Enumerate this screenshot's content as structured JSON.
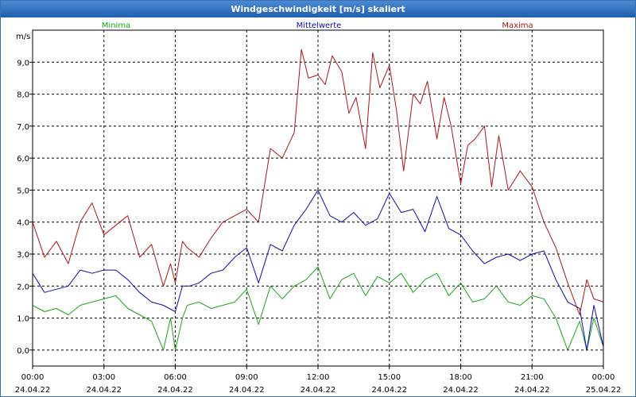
{
  "window": {
    "title": "Windgeschwindigkeit [m/s] skaliert"
  },
  "colors": {
    "title_bar": "#2f6cbf",
    "minima": "#18a818",
    "mean": "#0c0cb4",
    "maxima": "#b01414",
    "grid": "#000000"
  },
  "chart_data": {
    "type": "line",
    "title": "Windgeschwindigkeit [m/s] skaliert",
    "ylabel": "m/s",
    "xlabel": "",
    "ylim": [
      -0.5,
      10.0
    ],
    "y_ticks": [
      "0,0",
      "1,0",
      "2,0",
      "3,0",
      "4,0",
      "5,0",
      "6,0",
      "7,0",
      "8,0",
      "9,0"
    ],
    "y_tick_values": [
      0,
      1,
      2,
      3,
      4,
      5,
      6,
      7,
      8,
      9
    ],
    "x_ticks": [
      {
        "time": "00:00",
        "date": "24.04.22"
      },
      {
        "time": "03:00",
        "date": "24.04.22"
      },
      {
        "time": "06:00",
        "date": "24.04.22"
      },
      {
        "time": "09:00",
        "date": "24.04.22"
      },
      {
        "time": "12:00",
        "date": "24.04.22"
      },
      {
        "time": "15:00",
        "date": "24.04.22"
      },
      {
        "time": "18:00",
        "date": "24.04.22"
      },
      {
        "time": "21:00",
        "date": "24.04.22"
      },
      {
        "time": "00:00",
        "date": "25.04.22"
      }
    ],
    "grid": true,
    "x_unit": "hours since 24.04.22 00:00",
    "series": [
      {
        "name": "Minima",
        "color": "#18a818",
        "x": [
          0,
          0.5,
          1,
          1.5,
          2,
          2.5,
          3,
          3.5,
          4,
          4.5,
          5,
          5.5,
          5.8,
          6,
          6.3,
          6.5,
          7,
          7.5,
          8,
          8.5,
          9,
          9.5,
          10,
          10.5,
          11,
          11.5,
          12,
          12.5,
          13,
          13.5,
          14,
          14.5,
          15,
          15.5,
          16,
          16.5,
          17,
          17.5,
          18,
          18.5,
          19,
          19.5,
          20,
          20.5,
          21,
          21.5,
          22,
          22.5,
          23,
          23.3,
          23.6,
          24
        ],
        "values": [
          1.4,
          1.2,
          1.3,
          1.1,
          1.4,
          1.5,
          1.6,
          1.7,
          1.3,
          1.1,
          0.9,
          0.0,
          1.0,
          0.0,
          1.0,
          1.4,
          1.5,
          1.3,
          1.4,
          1.5,
          1.9,
          0.8,
          2.0,
          1.6,
          2.0,
          2.2,
          2.6,
          1.6,
          2.2,
          2.4,
          1.7,
          2.3,
          2.1,
          2.4,
          1.8,
          2.2,
          2.4,
          1.7,
          2.1,
          1.5,
          1.6,
          2.0,
          1.5,
          1.4,
          1.7,
          1.6,
          1.0,
          0.0,
          0.9,
          0.0,
          1.0,
          0.1
        ]
      },
      {
        "name": "Mittelwerte",
        "color": "#0c0cb4",
        "x": [
          0,
          0.5,
          1,
          1.5,
          2,
          2.5,
          3,
          3.5,
          4,
          4.5,
          5,
          5.5,
          6,
          6.3,
          6.6,
          7,
          7.5,
          8,
          8.5,
          9,
          9.5,
          10,
          10.5,
          11,
          11.5,
          12,
          12.5,
          13,
          13.5,
          14,
          14.5,
          15,
          15.5,
          16,
          16.5,
          17,
          17.5,
          18,
          18.5,
          19,
          19.5,
          20,
          20.5,
          21,
          21.5,
          22,
          22.5,
          23,
          23.3,
          23.6,
          24
        ],
        "values": [
          2.4,
          1.8,
          1.9,
          2.0,
          2.5,
          2.4,
          2.5,
          2.5,
          2.2,
          1.8,
          1.5,
          1.4,
          1.2,
          2.0,
          2.0,
          2.1,
          2.4,
          2.5,
          2.9,
          3.2,
          2.1,
          3.3,
          3.1,
          3.9,
          4.4,
          5.0,
          4.2,
          4.0,
          4.3,
          3.9,
          4.1,
          4.9,
          4.3,
          4.4,
          3.7,
          4.8,
          3.8,
          3.6,
          3.1,
          2.7,
          2.9,
          3.0,
          2.8,
          3.0,
          3.1,
          2.2,
          1.5,
          1.3,
          0.0,
          1.4,
          0.1
        ]
      },
      {
        "name": "Maxima",
        "color": "#b01414",
        "x": [
          0,
          0.5,
          1,
          1.5,
          2,
          2.5,
          3,
          3.5,
          4,
          4.5,
          5,
          5.5,
          5.8,
          6,
          6.3,
          6.5,
          7,
          7.5,
          8,
          8.5,
          9,
          9.5,
          10,
          10.5,
          11,
          11.3,
          11.6,
          12,
          12.3,
          12.6,
          13,
          13.3,
          13.6,
          14,
          14.3,
          14.6,
          15,
          15.3,
          15.6,
          16,
          16.3,
          16.6,
          17,
          17.3,
          17.6,
          18,
          18.3,
          18.6,
          19,
          19.3,
          19.6,
          20,
          20.5,
          21,
          21.5,
          22,
          22.5,
          23,
          23.3,
          23.6,
          24
        ],
        "values": [
          4.0,
          2.9,
          3.4,
          2.7,
          4.0,
          4.6,
          3.6,
          3.9,
          4.2,
          2.9,
          3.3,
          2.0,
          2.7,
          2.1,
          3.4,
          3.2,
          2.9,
          3.5,
          4.0,
          4.2,
          4.4,
          4.0,
          6.3,
          6.0,
          6.8,
          9.4,
          8.5,
          8.6,
          8.3,
          9.2,
          8.7,
          7.4,
          7.9,
          6.3,
          9.3,
          8.2,
          8.9,
          7.5,
          5.6,
          8.0,
          7.7,
          8.4,
          6.6,
          7.9,
          7.0,
          5.2,
          6.4,
          6.6,
          7.0,
          5.1,
          6.7,
          5.0,
          5.6,
          5.1,
          4.0,
          3.2,
          2.1,
          1.1,
          2.2,
          1.6,
          1.5
        ]
      }
    ]
  }
}
